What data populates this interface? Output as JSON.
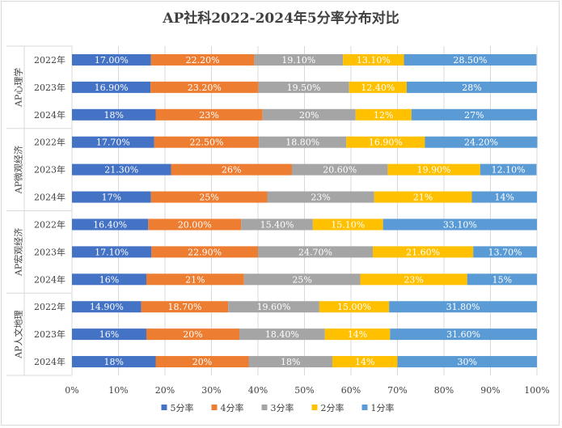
{
  "chart_data": {
    "type": "bar",
    "orientation": "horizontal",
    "stacked": true,
    "title": "AP社科2022-2024年5分率分布对比",
    "xlabel": "",
    "ylabel": "",
    "xlim": [
      0,
      100
    ],
    "x_ticks": [
      "0%",
      "10%",
      "20%",
      "30%",
      "40%",
      "50%",
      "60%",
      "70%",
      "80%",
      "90%",
      "100%"
    ],
    "legend_position": "bottom",
    "series_names": [
      "5分率",
      "4分率",
      "3分率",
      "2分率",
      "1分率"
    ],
    "series_colors": [
      "#4472c4",
      "#ed7d31",
      "#a5a5a5",
      "#ffc000",
      "#5b9bd5"
    ],
    "groups": [
      {
        "name": "AP心理学",
        "rows": [
          {
            "year": "2022年",
            "values": [
              17.0,
              22.2,
              19.1,
              13.1,
              28.5
            ],
            "labels": [
              "17.00%",
              "22.20%",
              "19.10%",
              "13.10%",
              "28.50%"
            ]
          },
          {
            "year": "2023年",
            "values": [
              16.9,
              23.2,
              19.5,
              12.4,
              28
            ],
            "labels": [
              "16.90%",
              "23.20%",
              "19.50%",
              "12.40%",
              "28%"
            ]
          },
          {
            "year": "2024年",
            "values": [
              18,
              23,
              20,
              12,
              27
            ],
            "labels": [
              "18%",
              "23%",
              "20%",
              "12%",
              "27%"
            ]
          }
        ]
      },
      {
        "name": "AP微观经济",
        "rows": [
          {
            "year": "2022年",
            "values": [
              17.7,
              22.5,
              18.8,
              16.9,
              24.2
            ],
            "labels": [
              "17.70%",
              "22.50%",
              "18.80%",
              "16.90%",
              "24.20%"
            ]
          },
          {
            "year": "2023年",
            "values": [
              21.3,
              26,
              20.6,
              19.9,
              12.1
            ],
            "labels": [
              "21.30%",
              "26%",
              "20.60%",
              "19.90%",
              "12.10%"
            ]
          },
          {
            "year": "2024年",
            "values": [
              17,
              25,
              23,
              21,
              14
            ],
            "labels": [
              "17%",
              "25%",
              "23%",
              "21%",
              "14%"
            ]
          }
        ]
      },
      {
        "name": "AP宏观经济",
        "rows": [
          {
            "year": "2022年",
            "values": [
              16.4,
              20.0,
              15.4,
              15.1,
              33.1
            ],
            "labels": [
              "16.40%",
              "20.00%",
              "15.40%",
              "15.10%",
              "33.10%"
            ]
          },
          {
            "year": "2023年",
            "values": [
              17.1,
              22.9,
              24.7,
              21.6,
              13.7
            ],
            "labels": [
              "17.10%",
              "22.90%",
              "24.70%",
              "21.60%",
              "13.70%"
            ]
          },
          {
            "year": "2024年",
            "values": [
              16,
              21,
              25,
              23,
              15
            ],
            "labels": [
              "16%",
              "21%",
              "25%",
              "23%",
              "15%"
            ]
          }
        ]
      },
      {
        "name": "AP人文地理",
        "rows": [
          {
            "year": "2022年",
            "values": [
              14.9,
              18.7,
              19.6,
              15.0,
              31.8
            ],
            "labels": [
              "14.90%",
              "18.70%",
              "19.60%",
              "15.00%",
              "31.80%"
            ]
          },
          {
            "year": "2023年",
            "values": [
              16,
              20,
              18.4,
              14,
              31.6
            ],
            "labels": [
              "16%",
              "20%",
              "18.40%",
              "14%",
              "31.60%"
            ]
          },
          {
            "year": "2024年",
            "values": [
              18,
              20,
              18,
              14,
              30
            ],
            "labels": [
              "18%",
              "20%",
              "18%",
              "14%",
              "30%"
            ]
          }
        ]
      }
    ]
  }
}
